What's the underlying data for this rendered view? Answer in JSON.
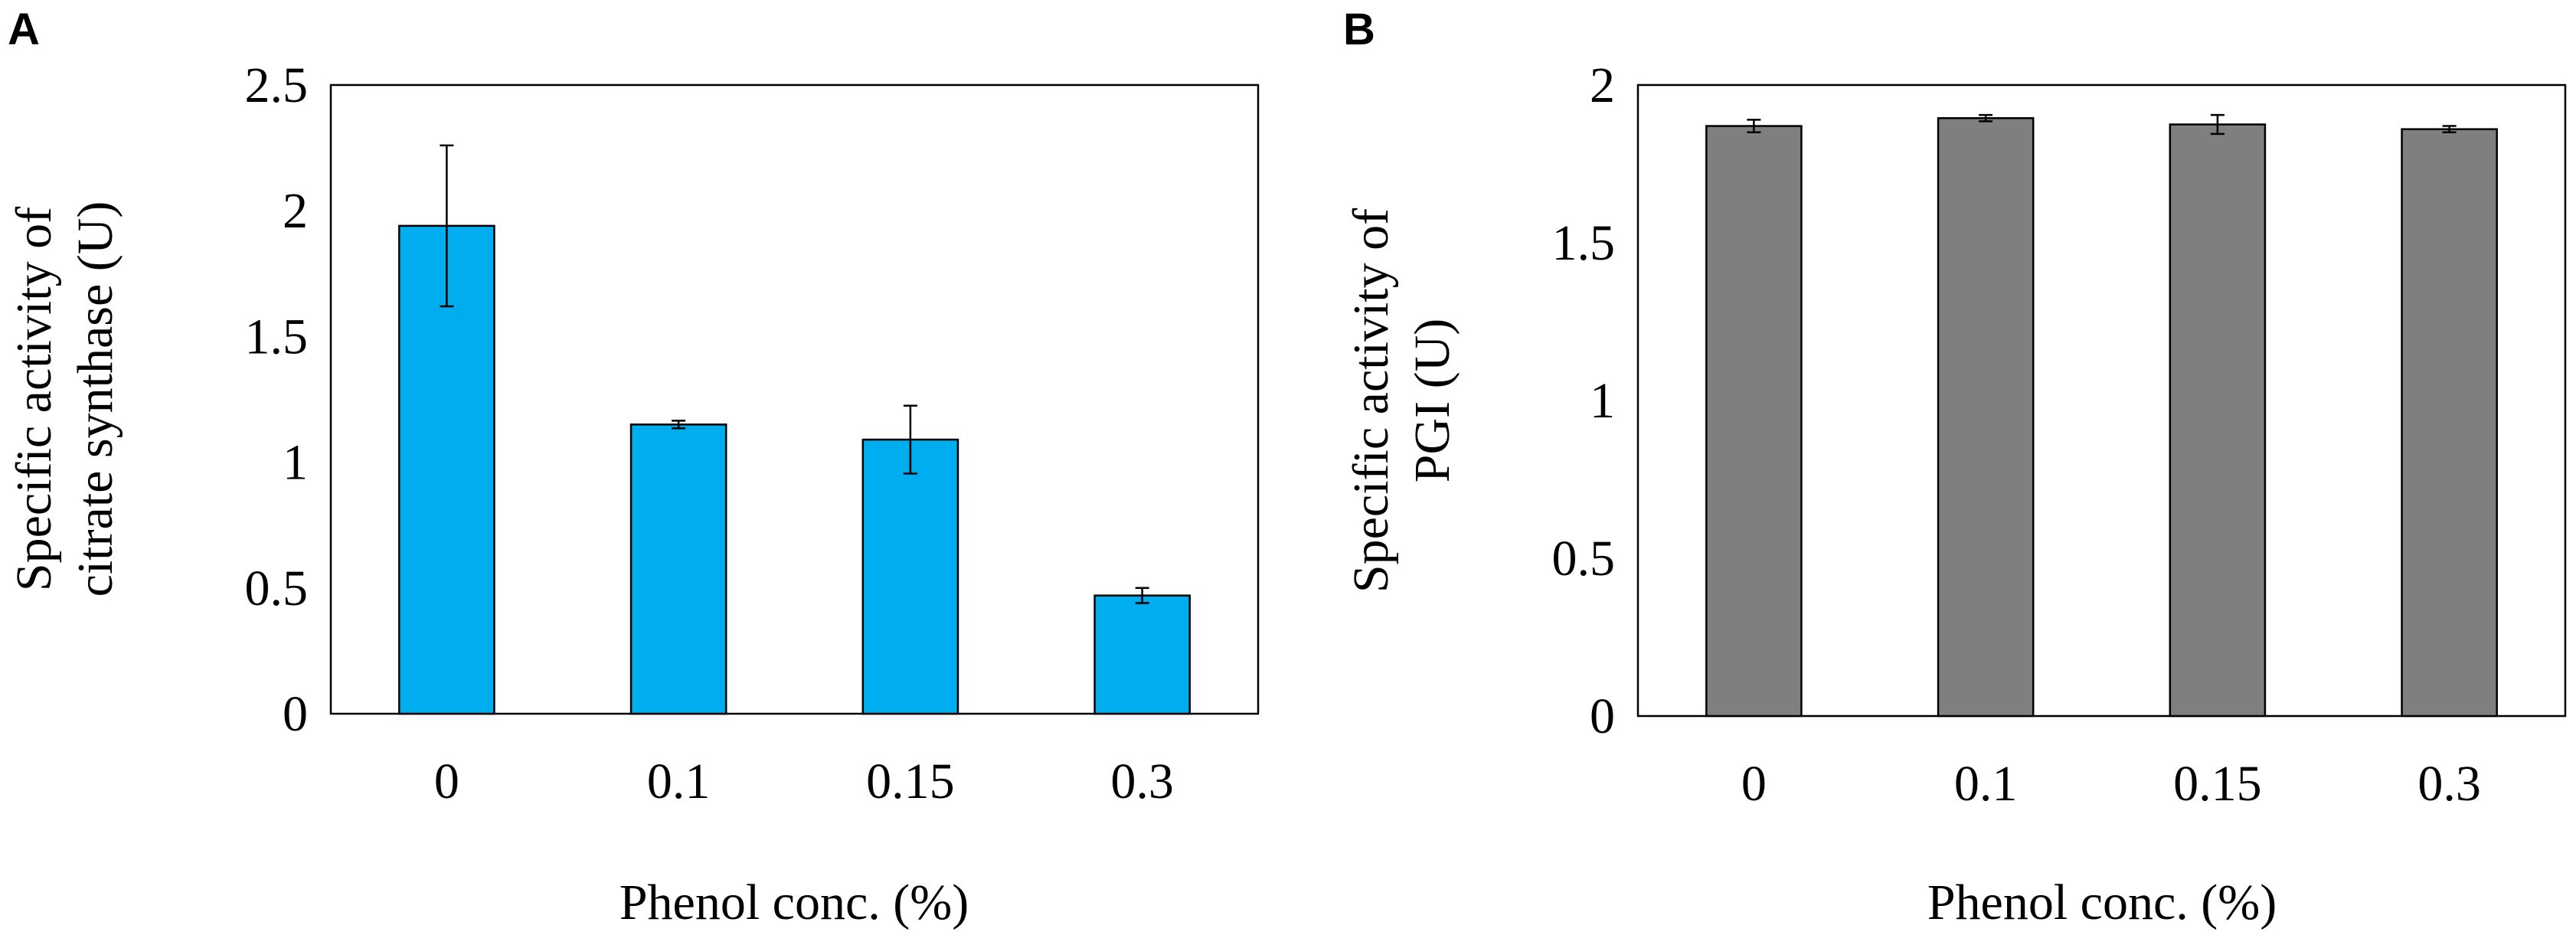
{
  "chart_data": [
    {
      "panel": "A",
      "type": "bar",
      "categories": [
        "0",
        "0.1",
        "0.15",
        "0.3"
      ],
      "values": [
        1.94,
        1.15,
        1.09,
        0.47
      ],
      "errors": [
        0.32,
        0.015,
        0.135,
        0.03
      ],
      "ylim": [
        0,
        2.5
      ],
      "yticks": [
        "0",
        "0.5",
        "1",
        "1.5",
        "2",
        "2.5"
      ],
      "xlabel": "Phenol conc. (%)",
      "ylabel_lines": [
        "Specific activity of",
        "citrate synthase (U)"
      ],
      "bar_color": "#00AEEF",
      "grid": false
    },
    {
      "panel": "B",
      "type": "bar",
      "categories": [
        "0",
        "0.1",
        "0.15",
        "0.3"
      ],
      "values": [
        1.87,
        1.895,
        1.875,
        1.86
      ],
      "errors": [
        0.02,
        0.01,
        0.03,
        0.01
      ],
      "ylim": [
        0,
        2
      ],
      "yticks": [
        "0",
        "0.5",
        "1",
        "1.5",
        "2"
      ],
      "xlabel": "Phenol conc. (%)",
      "ylabel_lines": [
        "Specific activity of",
        "PGI (U)"
      ],
      "bar_color": "#7F7F7F",
      "grid": false
    }
  ]
}
